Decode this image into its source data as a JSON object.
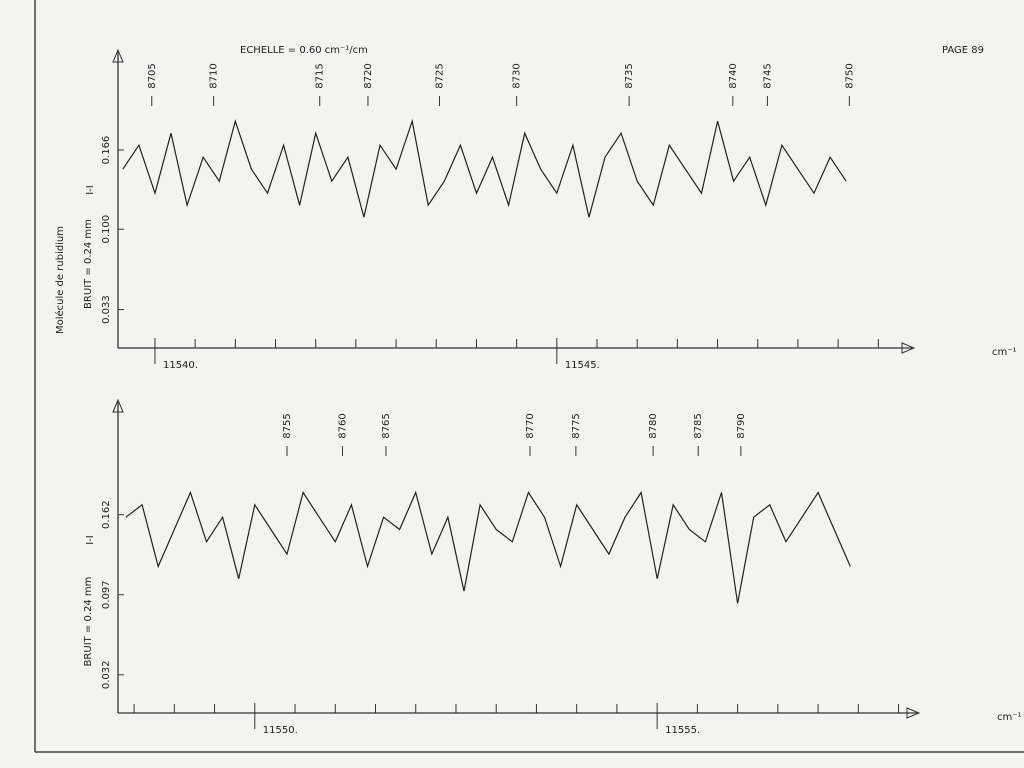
{
  "header": {
    "scale": "ECHELLE = 0.60 cm⁻¹/cm",
    "page": "PAGE 89",
    "side_label": "Molécule de rubidium"
  },
  "chart_data": [
    {
      "type": "line",
      "x_label": "cm⁻¹",
      "y_label": "BRUIT = 0.24 mm",
      "annotation": "I-I",
      "color": "#222222",
      "xlim": [
        11539.54,
        11549.27
      ],
      "ylim": [
        0.001,
        0.241
      ],
      "xticks": [
        {
          "value": 11540,
          "label": "11540."
        },
        {
          "value": 11545,
          "label": "11545."
        }
      ],
      "minor_xticks": [
        11540.5,
        11541,
        11541.5,
        11542,
        11542.5,
        11543,
        11543.5,
        11544,
        11544.5,
        11545.5,
        11546,
        11546.5,
        11547,
        11547.5,
        11548,
        11548.5,
        11549
      ],
      "yticks": [
        0.033,
        {
          "value": 0.1,
          "label": "0.100"
        },
        0.166
      ],
      "line_labels": [
        {
          "x": 11539.96,
          "label": "8705"
        },
        {
          "x": 11540.73,
          "label": "8710"
        },
        {
          "x": 11542.05,
          "label": "8715"
        },
        {
          "x": 11542.65,
          "label": "8720"
        },
        {
          "x": 11543.54,
          "label": "8725"
        },
        {
          "x": 11544.5,
          "label": "8730"
        },
        {
          "x": 11545.9,
          "label": "8735"
        },
        {
          "x": 11547.19,
          "label": "8740"
        },
        {
          "x": 11547.62,
          "label": "8745"
        },
        {
          "x": 11548.64,
          "label": "8750"
        }
      ],
      "x": [
        11539.6,
        11539.8,
        11540,
        11540.2,
        11540.4,
        11540.6,
        11540.8,
        11541,
        11541.2,
        11541.4,
        11541.6,
        11541.8,
        11542,
        11542.2,
        11542.4,
        11542.6,
        11542.8,
        11543,
        11543.2,
        11543.4,
        11543.6,
        11543.8,
        11544,
        11544.2,
        11544.4,
        11544.6,
        11544.8,
        11545,
        11545.2,
        11545.4,
        11545.6,
        11545.8,
        11546,
        11546.2,
        11546.4,
        11546.6,
        11546.8,
        11547,
        11547.2,
        11547.4,
        11547.6,
        11547.8,
        11548,
        11548.2,
        11548.4,
        11548.6
      ],
      "values": [
        0.15,
        0.17,
        0.13,
        0.18,
        0.12,
        0.16,
        0.14,
        0.19,
        0.15,
        0.13,
        0.17,
        0.12,
        0.18,
        0.14,
        0.16,
        0.11,
        0.17,
        0.15,
        0.19,
        0.12,
        0.14,
        0.17,
        0.13,
        0.16,
        0.12,
        0.18,
        0.15,
        0.13,
        0.17,
        0.11,
        0.16,
        0.18,
        0.14,
        0.12,
        0.17,
        0.15,
        0.13,
        0.19,
        0.14,
        0.16,
        0.12,
        0.17,
        0.15,
        0.13,
        0.16,
        0.14
      ]
    },
    {
      "type": "line",
      "x_label": "cm⁻¹",
      "y_label": "BRUIT = 0.24 mm",
      "annotation": "I-I",
      "color": "#222222",
      "xlim": [
        11548.3,
        11558.08
      ],
      "ylim": [
        0.001,
        0.247
      ],
      "xticks": [
        {
          "value": 11550,
          "label": "11550."
        },
        {
          "value": 11555,
          "label": "11555."
        }
      ],
      "minor_xticks": [
        11548.5,
        11549,
        11549.5,
        11550.5,
        11551,
        11551.5,
        11552,
        11552.5,
        11553,
        11553.5,
        11554,
        11554.5,
        11555.5,
        11556,
        11556.5,
        11557,
        11557.5,
        11558
      ],
      "yticks": [
        0.032,
        {
          "value": 0.097,
          "label": "0.097"
        },
        0.162
      ],
      "line_labels": [
        {
          "x": 11550.4,
          "label": "8755"
        },
        {
          "x": 11551.09,
          "label": "8760"
        },
        {
          "x": 11551.63,
          "label": "8765"
        },
        {
          "x": 11553.42,
          "label": "8770"
        },
        {
          "x": 11553.99,
          "label": "8775"
        },
        {
          "x": 11554.95,
          "label": "8780"
        },
        {
          "x": 11555.51,
          "label": "8785"
        },
        {
          "x": 11556.04,
          "label": "8790"
        }
      ],
      "x": [
        11548.4,
        11548.6,
        11548.8,
        11549,
        11549.2,
        11549.4,
        11549.6,
        11549.8,
        11550,
        11550.2,
        11550.4,
        11550.6,
        11550.8,
        11551,
        11551.2,
        11551.4,
        11551.6,
        11551.8,
        11552,
        11552.2,
        11552.4,
        11552.6,
        11552.8,
        11553,
        11553.2,
        11553.4,
        11553.6,
        11553.8,
        11554,
        11554.2,
        11554.4,
        11554.6,
        11554.8,
        11555,
        11555.2,
        11555.4,
        11555.6,
        11555.8,
        11556,
        11556.2,
        11556.4,
        11556.6,
        11556.8,
        11557,
        11557.2,
        11557.4
      ],
      "values": [
        0.16,
        0.17,
        0.12,
        0.15,
        0.18,
        0.14,
        0.16,
        0.11,
        0.17,
        0.15,
        0.13,
        0.18,
        0.16,
        0.14,
        0.17,
        0.12,
        0.16,
        0.15,
        0.18,
        0.13,
        0.16,
        0.1,
        0.17,
        0.15,
        0.14,
        0.18,
        0.16,
        0.12,
        0.17,
        0.15,
        0.13,
        0.16,
        0.18,
        0.11,
        0.17,
        0.15,
        0.14,
        0.18,
        0.09,
        0.16,
        0.17,
        0.14,
        0.16,
        0.18,
        0.15,
        0.12
      ]
    }
  ]
}
